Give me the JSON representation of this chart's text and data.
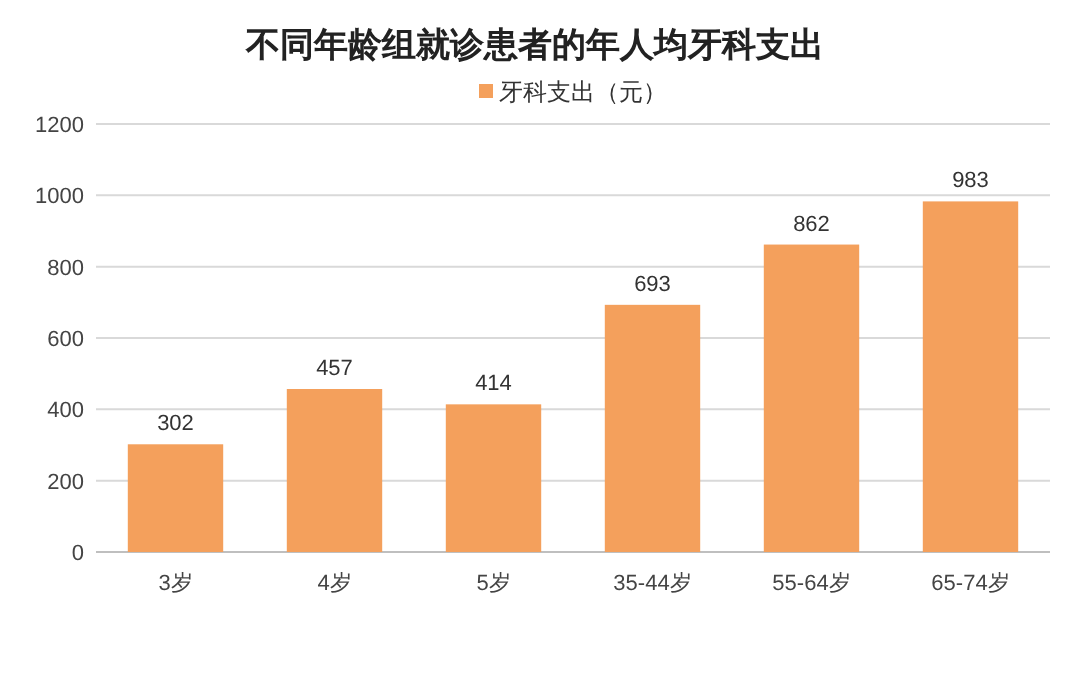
{
  "chart_data": {
    "type": "bar",
    "title": "不同年龄组就诊患者的年人均牙科支出",
    "categories": [
      "3岁",
      "4岁",
      "5岁",
      "35-44岁",
      "55-64岁",
      "65-74岁"
    ],
    "series": [
      {
        "name": "牙科支出（元）",
        "color": "#f4a05c",
        "values": [
          302,
          457,
          414,
          693,
          862,
          983
        ]
      }
    ],
    "ylim": [
      0,
      1200
    ],
    "yticks": [
      0,
      200,
      400,
      600,
      800,
      1000,
      1200
    ],
    "grid": "y",
    "legend": "top",
    "data_labels": true
  }
}
